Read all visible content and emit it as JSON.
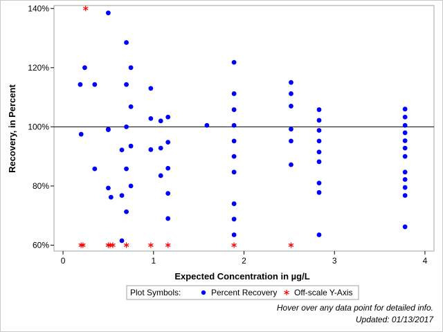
{
  "chart_data": {
    "type": "scatter",
    "title": "",
    "xlabel": "Expected Concentration in µg/L",
    "ylabel": "Recovery, in Percent",
    "xlim": [
      -0.1,
      4.1
    ],
    "ylim": [
      58,
      141
    ],
    "x_ticks": [
      0,
      1,
      2,
      3,
      4
    ],
    "y_ticks": [
      60,
      80,
      100,
      120,
      140
    ],
    "y_tick_format": "%",
    "reference_line_y": 100,
    "grid": false,
    "series": [
      {
        "name": "Percent Recovery",
        "marker": "circle",
        "color": "#0000ff",
        "points": [
          [
            0.19,
            114.3
          ],
          [
            0.2,
            97.5
          ],
          [
            0.24,
            120.0
          ],
          [
            0.35,
            114.3
          ],
          [
            0.35,
            85.8
          ],
          [
            0.5,
            138.5
          ],
          [
            0.5,
            99.0
          ],
          [
            0.5,
            99.2
          ],
          [
            0.5,
            79.3
          ],
          [
            0.53,
            76.2
          ],
          [
            0.65,
            92.2
          ],
          [
            0.65,
            76.8
          ],
          [
            0.65,
            61.5
          ],
          [
            0.7,
            128.5
          ],
          [
            0.7,
            114.3
          ],
          [
            0.7,
            100.0
          ],
          [
            0.7,
            85.8
          ],
          [
            0.7,
            71.3
          ],
          [
            0.75,
            120.0
          ],
          [
            0.75,
            106.8
          ],
          [
            0.75,
            93.5
          ],
          [
            0.75,
            80.0
          ],
          [
            0.97,
            113.0
          ],
          [
            0.97,
            102.8
          ],
          [
            0.97,
            92.3
          ],
          [
            1.08,
            102.0
          ],
          [
            1.08,
            92.8
          ],
          [
            1.08,
            83.5
          ],
          [
            1.16,
            103.3
          ],
          [
            1.16,
            94.8
          ],
          [
            1.16,
            86.0
          ],
          [
            1.16,
            77.5
          ],
          [
            1.16,
            69.0
          ],
          [
            1.59,
            100.5
          ],
          [
            1.89,
            121.8
          ],
          [
            1.89,
            111.2
          ],
          [
            1.89,
            105.8
          ],
          [
            1.89,
            100.5
          ],
          [
            1.89,
            95.2
          ],
          [
            1.89,
            90.0
          ],
          [
            1.89,
            84.7
          ],
          [
            1.89,
            74.0
          ],
          [
            1.89,
            68.8
          ],
          [
            1.89,
            63.5
          ],
          [
            2.52,
            115.0
          ],
          [
            2.52,
            111.2
          ],
          [
            2.52,
            107.0
          ],
          [
            2.52,
            99.2
          ],
          [
            2.52,
            95.2
          ],
          [
            2.52,
            87.2
          ],
          [
            2.83,
            105.8
          ],
          [
            2.83,
            102.2
          ],
          [
            2.83,
            98.8
          ],
          [
            2.83,
            95.2
          ],
          [
            2.83,
            91.5
          ],
          [
            2.83,
            88.2
          ],
          [
            2.83,
            81.0
          ],
          [
            2.83,
            77.8
          ],
          [
            2.83,
            63.5
          ],
          [
            3.78,
            106.0
          ],
          [
            3.78,
            103.3
          ],
          [
            3.78,
            100.5
          ],
          [
            3.78,
            98.0
          ],
          [
            3.78,
            95.3
          ],
          [
            3.78,
            92.8
          ],
          [
            3.78,
            90.0
          ],
          [
            3.78,
            84.7
          ],
          [
            3.78,
            82.2
          ],
          [
            3.78,
            79.5
          ],
          [
            3.78,
            76.8
          ],
          [
            3.78,
            66.2
          ]
        ]
      },
      {
        "name": "Off-scale Y-Axis",
        "marker": "asterisk",
        "color": "#ff0000",
        "points": [
          [
            0.25,
            140
          ],
          [
            0.2,
            60
          ],
          [
            0.22,
            60
          ],
          [
            0.5,
            60
          ],
          [
            0.52,
            60
          ],
          [
            0.55,
            60
          ],
          [
            0.7,
            60
          ],
          [
            0.97,
            60
          ],
          [
            1.16,
            60
          ],
          [
            1.89,
            60
          ],
          [
            2.52,
            60
          ]
        ]
      }
    ],
    "legend": {
      "title": "Plot Symbols:",
      "placement": "bottom-center"
    }
  },
  "notes": {
    "hover": "Hover over any data point for detailed info.",
    "updated": "Updated: 01/13/2017"
  }
}
